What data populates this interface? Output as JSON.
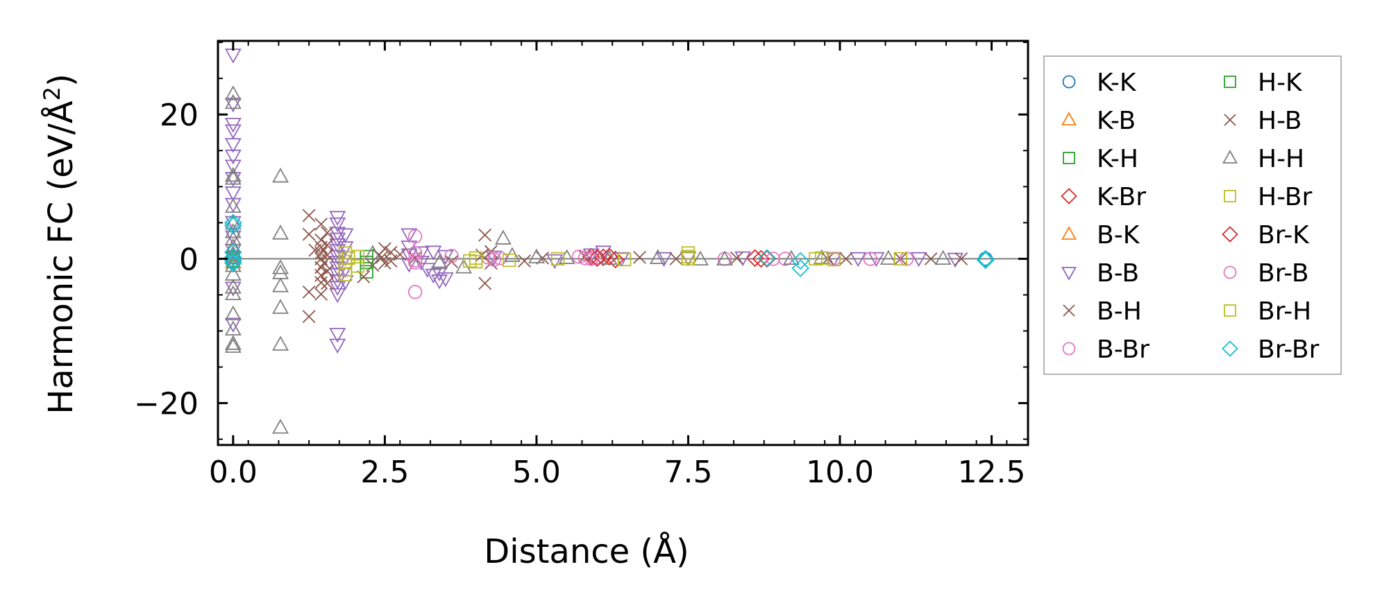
{
  "chart_data": {
    "type": "scatter",
    "title": "",
    "xlabel": "Distance (Å)",
    "ylabel": "Harmonic FC (eV/Å²)",
    "ylabel_base": "Harmonic FC (eV/Å",
    "ylabel_sup": "2",
    "ylabel_close": ")",
    "xlim": [
      -0.25,
      13.1
    ],
    "ylim": [
      -25.8,
      30.2
    ],
    "xticks": [
      0.0,
      2.5,
      5.0,
      7.5,
      10.0,
      12.5
    ],
    "xtick_labels": [
      "0.0",
      "2.5",
      "5.0",
      "7.5",
      "10.0",
      "12.5"
    ],
    "yticks": [
      -20,
      0,
      20
    ],
    "ytick_labels": [
      "−20",
      "0",
      "20"
    ],
    "grid": false,
    "zero_line": true,
    "legend_position": "outside-right",
    "series": [
      {
        "name": "K-K",
        "marker": "circle",
        "color": "#1f77b4",
        "points": [
          [
            0,
            0.3
          ],
          [
            0,
            -0.3
          ],
          [
            12.4,
            0
          ]
        ]
      },
      {
        "name": "K-B",
        "marker": "triangle-up",
        "color": "#ff7f0e",
        "points": [
          [
            0,
            0.5
          ],
          [
            0,
            -0.5
          ]
        ]
      },
      {
        "name": "K-H",
        "marker": "square",
        "color": "#2ca02c",
        "points": [
          [
            0,
            0.2
          ],
          [
            2.2,
            -1.8
          ],
          [
            2.2,
            0.3
          ]
        ]
      },
      {
        "name": "K-Br",
        "marker": "diamond",
        "color": "#d62728",
        "points": [
          [
            5.9,
            0.3
          ],
          [
            6.1,
            0.2
          ],
          [
            6.3,
            -0.1
          ],
          [
            8.6,
            0.1
          ],
          [
            8.8,
            0
          ]
        ]
      },
      {
        "name": "B-K",
        "marker": "triangle-up",
        "color": "#ff7f0e",
        "points": [
          [
            0,
            0.4
          ]
        ]
      },
      {
        "name": "B-B",
        "marker": "triangle-down",
        "color": "#9467bd",
        "points": [
          [
            0,
            28.3
          ],
          [
            0,
            21.5
          ],
          [
            0,
            18.7
          ],
          [
            0,
            17.8
          ],
          [
            0,
            15.9
          ],
          [
            0,
            14.3
          ],
          [
            0,
            12.9
          ],
          [
            0,
            11.2
          ],
          [
            0,
            9.2
          ],
          [
            0,
            7.6
          ],
          [
            0,
            5.1
          ],
          [
            0,
            3.1
          ],
          [
            0,
            1.2
          ],
          [
            0,
            -0.7
          ],
          [
            0,
            -4.0
          ],
          [
            0,
            -9.0
          ],
          [
            1.72,
            5.8
          ],
          [
            1.72,
            4.9
          ],
          [
            1.72,
            3.6
          ],
          [
            1.72,
            2.8
          ],
          [
            1.72,
            2.0
          ],
          [
            1.72,
            1.2
          ],
          [
            1.72,
            0.4
          ],
          [
            1.72,
            -0.4
          ],
          [
            1.72,
            -1.2
          ],
          [
            1.72,
            -2.1
          ],
          [
            1.72,
            -3.0
          ],
          [
            1.72,
            -3.9
          ],
          [
            1.72,
            -4.9
          ],
          [
            1.72,
            -10.4
          ],
          [
            1.72,
            -11.9
          ],
          [
            1.85,
            3.4
          ],
          [
            1.85,
            1.6
          ],
          [
            1.85,
            0.2
          ],
          [
            1.85,
            -1.4
          ],
          [
            1.85,
            -3.1
          ],
          [
            2.9,
            3.4
          ],
          [
            2.9,
            1.7
          ],
          [
            2.9,
            0.6
          ],
          [
            2.9,
            -0.7
          ],
          [
            3.1,
            0.9
          ],
          [
            3.1,
            -0.4
          ],
          [
            3.2,
            -1.4
          ],
          [
            3.3,
            1.0
          ],
          [
            3.3,
            -2.2
          ],
          [
            3.4,
            -1.9
          ],
          [
            3.4,
            -3.0
          ],
          [
            3.5,
            0.4
          ],
          [
            3.5,
            -2.7
          ],
          [
            4.3,
            0.3
          ],
          [
            5.3,
            -0.2
          ],
          [
            5.9,
            0.6
          ],
          [
            6.1,
            1.0
          ],
          [
            6.4,
            0.1
          ],
          [
            7.1,
            0.1
          ],
          [
            7.5,
            0.2
          ],
          [
            8.4,
            0.2
          ],
          [
            9.9,
            0.1
          ],
          [
            10.3,
            0.1
          ],
          [
            10.6,
            0.1
          ],
          [
            11.3,
            0.1
          ],
          [
            11.9,
            0
          ]
        ]
      },
      {
        "name": "B-H",
        "marker": "x",
        "color": "#8c564b",
        "points": [
          [
            1.25,
            6.0
          ],
          [
            1.25,
            3.4
          ],
          [
            1.25,
            -4.6
          ],
          [
            1.25,
            -8.0
          ],
          [
            1.45,
            4.8
          ],
          [
            1.45,
            2.6
          ],
          [
            1.45,
            1.6
          ],
          [
            1.45,
            0.8
          ],
          [
            1.45,
            0
          ],
          [
            1.45,
            -1.2
          ],
          [
            1.45,
            -2.3
          ],
          [
            1.45,
            -3.3
          ],
          [
            1.45,
            -4.9
          ],
          [
            1.55,
            3.6
          ],
          [
            1.55,
            1.9
          ],
          [
            1.55,
            0.5
          ],
          [
            1.55,
            -1.7
          ],
          [
            1.55,
            -3.4
          ],
          [
            2.15,
            -2.5
          ],
          [
            2.3,
            -0.9
          ],
          [
            2.4,
            0.5
          ],
          [
            2.5,
            1.4
          ],
          [
            2.5,
            -0.6
          ],
          [
            2.6,
            0.9
          ],
          [
            2.6,
            -0.3
          ],
          [
            2.75,
            0.6
          ],
          [
            3.0,
            0.1
          ],
          [
            3.6,
            -0.4
          ],
          [
            4.15,
            3.3
          ],
          [
            4.15,
            -3.4
          ],
          [
            4.25,
            1.0
          ],
          [
            4.25,
            -0.6
          ],
          [
            4.8,
            -0.3
          ],
          [
            5.1,
            0.1
          ],
          [
            5.8,
            0.3
          ],
          [
            6.7,
            0.2
          ],
          [
            7.3,
            0
          ],
          [
            8.3,
            0.1
          ],
          [
            9.8,
            0
          ],
          [
            10.1,
            0
          ],
          [
            11.0,
            0
          ],
          [
            11.5,
            0
          ],
          [
            12.0,
            0
          ]
        ]
      },
      {
        "name": "B-Br",
        "marker": "circle",
        "color": "#e377c2",
        "points": [
          [
            3.0,
            3.1
          ],
          [
            3.0,
            -4.6
          ],
          [
            3.0,
            0.8
          ],
          [
            3.0,
            -0.2
          ],
          [
            3.6,
            0.4
          ],
          [
            4.2,
            0.2
          ],
          [
            4.4,
            0.1
          ],
          [
            5.7,
            0.3
          ],
          [
            5.9,
            0
          ],
          [
            6.0,
            0.2
          ],
          [
            8.1,
            0
          ],
          [
            9.1,
            0
          ],
          [
            9.9,
            0
          ],
          [
            10.5,
            0
          ],
          [
            11.1,
            0
          ]
        ]
      },
      {
        "name": "H-K",
        "marker": "square",
        "color": "#2ca02c",
        "points": [
          [
            0,
            -0.2
          ],
          [
            2.2,
            -0.5
          ]
        ]
      },
      {
        "name": "H-B",
        "marker": "x",
        "color": "#8c564b",
        "points": [
          [
            1.35,
            1.2
          ],
          [
            1.5,
            -0.6
          ],
          [
            2.45,
            0.2
          ],
          [
            4.1,
            0.5
          ]
        ]
      },
      {
        "name": "H-H",
        "marker": "triangle-up",
        "color": "#7f7f7f",
        "points": [
          [
            0,
            22.8
          ],
          [
            0,
            21.6
          ],
          [
            0,
            11.5
          ],
          [
            0,
            11.1
          ],
          [
            0,
            7.2
          ],
          [
            0,
            4.9
          ],
          [
            0,
            3.7
          ],
          [
            0,
            2.7
          ],
          [
            0,
            1.6
          ],
          [
            0,
            0.6
          ],
          [
            0,
            -1.0
          ],
          [
            0,
            -2.2
          ],
          [
            0,
            -4.0
          ],
          [
            0,
            -4.9
          ],
          [
            0,
            -7.7
          ],
          [
            0,
            -9.8
          ],
          [
            0,
            -11.8
          ],
          [
            0,
            -12.2
          ],
          [
            0.78,
            11.4
          ],
          [
            0.78,
            3.5
          ],
          [
            0.78,
            -1.3
          ],
          [
            0.78,
            -2.0
          ],
          [
            0.78,
            -3.8
          ],
          [
            0.78,
            -6.8
          ],
          [
            0.78,
            -11.9
          ],
          [
            0.78,
            -23.4
          ],
          [
            2.3,
            0.7
          ],
          [
            3.4,
            -0.6
          ],
          [
            3.8,
            -1.2
          ],
          [
            4.45,
            2.8
          ],
          [
            4.6,
            0.4
          ],
          [
            5.0,
            0.2
          ],
          [
            5.5,
            0.1
          ],
          [
            6.2,
            0
          ],
          [
            7.0,
            0.1
          ],
          [
            7.7,
            -0.1
          ],
          [
            8.1,
            -0.1
          ],
          [
            9.2,
            0
          ],
          [
            9.7,
            0.1
          ],
          [
            10.8,
            0
          ],
          [
            11.7,
            0
          ]
        ]
      },
      {
        "name": "H-Br",
        "marker": "square",
        "color": "#bcbd22",
        "points": [
          [
            1.85,
            0.8
          ],
          [
            1.85,
            -0.4
          ],
          [
            1.85,
            -1.5
          ],
          [
            1.85,
            -2.2
          ],
          [
            2.05,
            0.3
          ],
          [
            2.05,
            -1.0
          ],
          [
            3.9,
            -0.3
          ],
          [
            4.0,
            0.1
          ],
          [
            4.55,
            -0.2
          ],
          [
            5.35,
            0
          ],
          [
            6.45,
            -0.1
          ],
          [
            7.5,
            0.8
          ],
          [
            7.5,
            0
          ],
          [
            9.6,
            0
          ],
          [
            9.9,
            -0.1
          ],
          [
            11.0,
            0
          ]
        ]
      },
      {
        "name": "Br-K",
        "marker": "diamond",
        "color": "#d62728",
        "points": [
          [
            6.0,
            0.1
          ],
          [
            6.2,
            0.3
          ],
          [
            8.7,
            0
          ]
        ]
      },
      {
        "name": "Br-B",
        "marker": "circle",
        "color": "#e377c2",
        "points": [
          [
            3.0,
            -0.5
          ],
          [
            4.3,
            -0.1
          ],
          [
            5.8,
            0.1
          ],
          [
            8.9,
            0
          ]
        ]
      },
      {
        "name": "Br-H",
        "marker": "square",
        "color": "#bcbd22",
        "points": [
          [
            1.9,
            0.1
          ],
          [
            4.0,
            -0.4
          ],
          [
            7.5,
            0.3
          ],
          [
            9.7,
            0.1
          ]
        ]
      },
      {
        "name": "Br-Br",
        "marker": "diamond",
        "color": "#17becf",
        "points": [
          [
            0,
            5.0
          ],
          [
            0,
            4.6
          ],
          [
            0,
            0.9
          ],
          [
            0,
            0.2
          ],
          [
            0,
            -0.3
          ],
          [
            0,
            -0.6
          ],
          [
            8.8,
            0.1
          ],
          [
            9.35,
            -0.3
          ],
          [
            9.35,
            -1.3
          ],
          [
            12.4,
            0
          ],
          [
            12.4,
            -0.2
          ]
        ]
      }
    ]
  }
}
